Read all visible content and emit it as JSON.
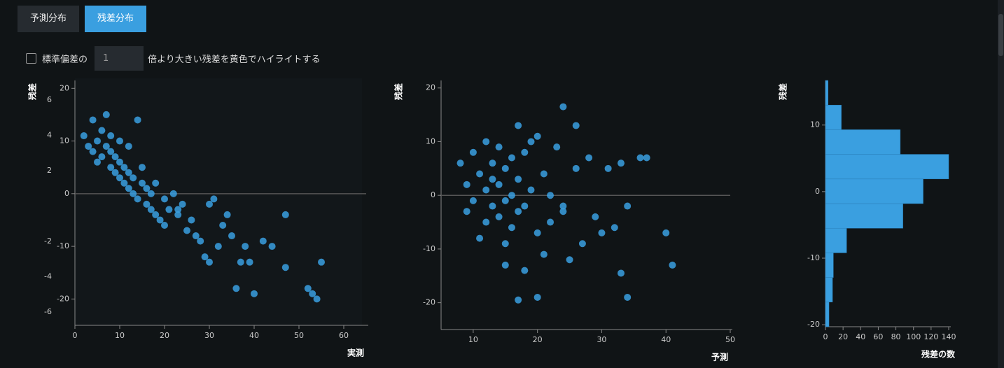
{
  "tabs": [
    "予測分布",
    "残差分布"
  ],
  "highlight": {
    "label_before": "標準偏差の",
    "value": 1,
    "label_after": "倍より大きい残差を黄色でハイライトする"
  },
  "chart_data": [
    {
      "type": "scatter",
      "xlabel": "実測",
      "ylabel": "残差",
      "color": "#3a9fe0",
      "xlim": [
        0,
        65
      ],
      "xticks": [
        0,
        10,
        20,
        30,
        40,
        50,
        60
      ],
      "ylim": [
        -25,
        21.5
      ],
      "yticks": [
        20,
        10,
        0,
        -10,
        -20
      ],
      "y2lim": [
        -6.75,
        7.1
      ],
      "y2ticks": [
        6,
        4,
        2,
        -2,
        -4,
        -6
      ],
      "reference_line": 0,
      "x": [
        2,
        3,
        4,
        4,
        5,
        5,
        6,
        6,
        7,
        7,
        8,
        8,
        8,
        9,
        9,
        10,
        10,
        10,
        11,
        11,
        12,
        12,
        12,
        13,
        13,
        14,
        14,
        15,
        15,
        16,
        16,
        17,
        17,
        18,
        18,
        19,
        20,
        20,
        21,
        22,
        23,
        24,
        25,
        26,
        28,
        29,
        30,
        30,
        32,
        34,
        35,
        36,
        38,
        40,
        42,
        44,
        47,
        47,
        52,
        53,
        54,
        55,
        37,
        39,
        33,
        31,
        27,
        23
      ],
      "values": [
        11,
        9,
        14,
        8,
        10,
        6,
        12,
        7,
        9,
        15,
        5,
        8,
        11,
        4,
        7,
        3,
        6,
        10,
        2,
        5,
        1,
        4,
        9,
        0,
        3,
        14,
        -1,
        2,
        5,
        -2,
        1,
        -3,
        0,
        -4,
        2,
        -5,
        -1,
        -6,
        -3,
        0,
        -4,
        -2,
        -7,
        -5,
        -9,
        -12,
        -13,
        -2,
        -10,
        -4,
        -8,
        -18,
        -10,
        -19,
        -9,
        -10,
        -14,
        -4,
        -18,
        -19,
        -20,
        -13,
        -13,
        -13,
        -6,
        -1,
        -8,
        -3
      ]
    },
    {
      "type": "scatter",
      "xlabel": "予測",
      "ylabel": "残差",
      "color": "#3a9fe0",
      "xlim": [
        5,
        50
      ],
      "xticks": [
        10,
        20,
        30,
        40,
        50
      ],
      "ylim": [
        -25,
        21.4
      ],
      "yticks": [
        20,
        10,
        0,
        -10,
        -20
      ],
      "reference_line": 0,
      "x": [
        8,
        9,
        9,
        10,
        10,
        11,
        11,
        12,
        12,
        12,
        13,
        13,
        13,
        14,
        14,
        14,
        15,
        15,
        15,
        16,
        16,
        16,
        17,
        17,
        17,
        18,
        18,
        18,
        19,
        19,
        20,
        20,
        21,
        21,
        22,
        22,
        23,
        24,
        24,
        25,
        26,
        26,
        27,
        28,
        29,
        30,
        31,
        33,
        34,
        34,
        36,
        37,
        40,
        41,
        33,
        32,
        17,
        20,
        24,
        15
      ],
      "values": [
        6,
        -3,
        2,
        8,
        -1,
        4,
        -8,
        10,
        1,
        -5,
        6,
        -2,
        3,
        9,
        -4,
        2,
        -13,
        5,
        -1,
        7,
        0,
        -6,
        13,
        3,
        -3,
        -14,
        8,
        -2,
        10,
        1,
        -7,
        11,
        4,
        -11,
        0,
        -5,
        9,
        16.5,
        -3,
        -12,
        5,
        13,
        -9,
        7,
        -4,
        -7,
        5,
        -14.5,
        -2,
        -19,
        7,
        7,
        -7,
        -13,
        6,
        -6,
        -19.5,
        -19,
        -2,
        -9
      ]
    },
    {
      "type": "histogram",
      "orientation": "horizontal",
      "xlabel": "残差の数",
      "ylabel": "残差",
      "color": "#3a9fe0",
      "bins": [
        -20.3,
        -16.6,
        -12.9,
        -9.2,
        -5.5,
        -1.8,
        1.9,
        5.6,
        9.3,
        13.0,
        16.7
      ],
      "values": [
        4,
        8,
        9,
        24,
        88,
        111,
        140,
        85,
        18,
        3
      ],
      "xlim": [
        0,
        140
      ],
      "xticks": [
        0,
        20,
        40,
        60,
        80,
        100,
        120,
        140
      ],
      "ylim": [
        -20.3,
        16.7
      ],
      "yticks": [
        10,
        0,
        -10,
        -20
      ]
    }
  ]
}
